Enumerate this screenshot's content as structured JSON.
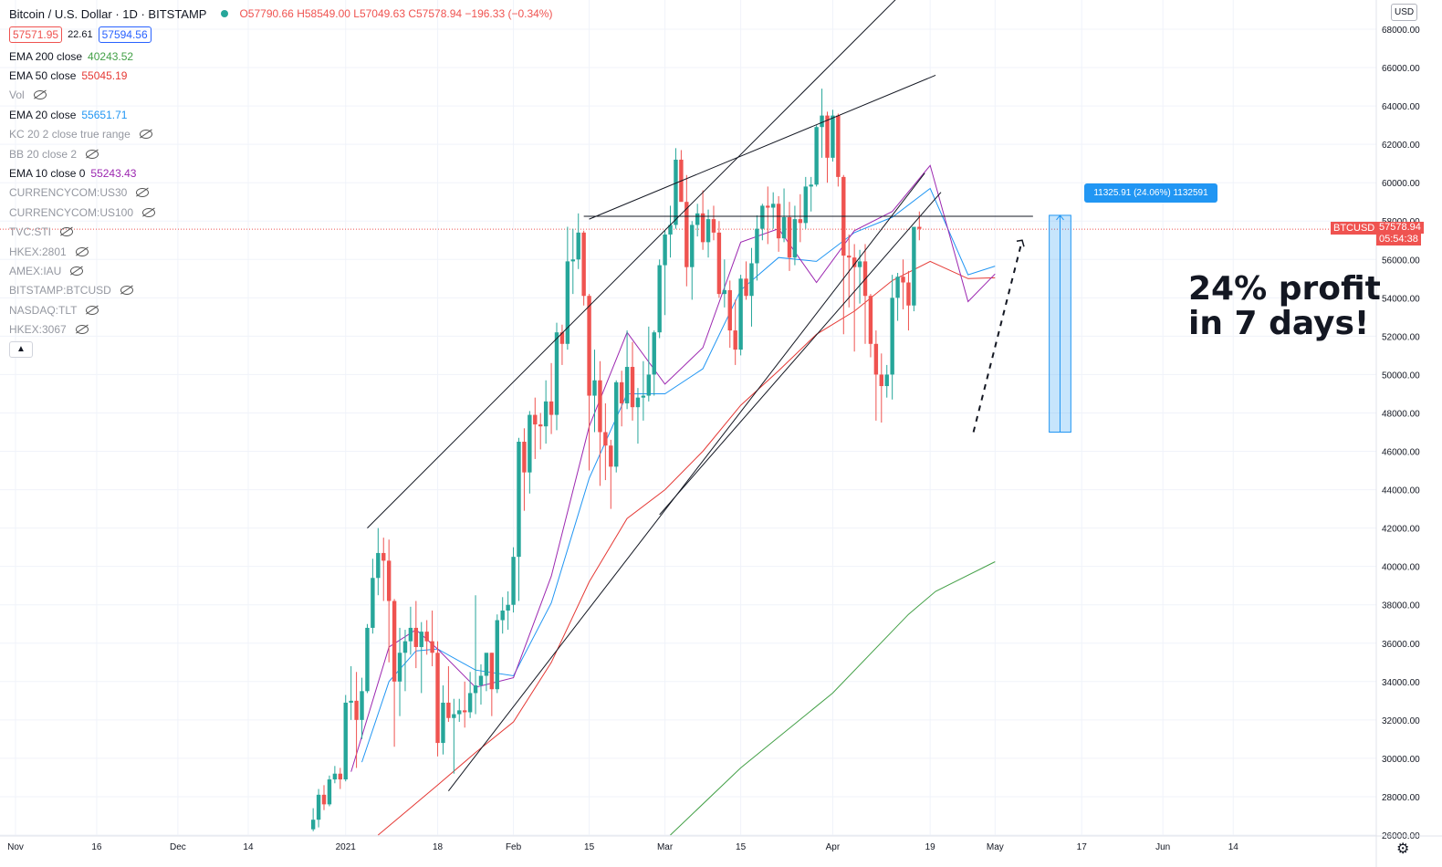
{
  "header": {
    "symbol_title": "Bitcoin / U.S. Dollar · 1D · BITSTAMP",
    "open": "O57790.66",
    "high": "H58549.00",
    "low": "L57049.63",
    "close": "C57578.94",
    "change": "−196.33 (−0.34%)",
    "bid": "57571.95",
    "spread": "22.61",
    "ask": "57594.56"
  },
  "indicators": [
    {
      "name": "EMA 200 close",
      "value": "40243.52",
      "color": "#43a047",
      "hidden": false
    },
    {
      "name": "EMA 50 close",
      "value": "55045.19",
      "color": "#e53935",
      "hidden": false
    },
    {
      "name": "Vol",
      "value": "",
      "color": "",
      "hidden": true
    },
    {
      "name": "EMA 20 close",
      "value": "55651.71",
      "color": "#2196f3",
      "hidden": false
    },
    {
      "name": "KC 20 2 close true range",
      "value": "",
      "color": "",
      "hidden": true
    },
    {
      "name": "BB 20 close 2",
      "value": "",
      "color": "",
      "hidden": true
    },
    {
      "name": "EMA 10 close 0",
      "value": "55243.43",
      "color": "#9c27b0",
      "hidden": false
    },
    {
      "name": "CURRENCYCOM:US30",
      "value": "",
      "color": "",
      "hidden": true
    },
    {
      "name": "CURRENCYCOM:US100",
      "value": "",
      "color": "",
      "hidden": true
    },
    {
      "name": "TVC:STI",
      "value": "",
      "color": "",
      "hidden": true
    },
    {
      "name": "HKEX:2801",
      "value": "",
      "color": "",
      "hidden": true
    },
    {
      "name": "AMEX:IAU",
      "value": "",
      "color": "",
      "hidden": true
    },
    {
      "name": "BITSTAMP:BTCUSD",
      "value": "",
      "color": "",
      "hidden": true
    },
    {
      "name": "NASDAQ:TLT",
      "value": "",
      "color": "",
      "hidden": true
    },
    {
      "name": "HKEX:3067",
      "value": "",
      "color": "",
      "hidden": true
    }
  ],
  "currency_label": "USD",
  "symbol_tag": "BTCUSD",
  "last_price_tag": "57578.94",
  "countdown_tag": "05:54:38",
  "measure_label": "11325.91 (24.06%) 1132591",
  "annotation_line1": "24% profit",
  "annotation_line2": "in 7 days!",
  "icons": {
    "collapse": "chevron-up-icon",
    "settings": "gear-icon",
    "visibility": "eye-off-icon"
  },
  "colors": {
    "up": "#26a69a",
    "down": "#ef5350",
    "ema200": "#43a047",
    "ema50": "#e53935",
    "ema20": "#2196f3",
    "ema10": "#9c27b0",
    "measure": "#2196f3"
  },
  "chart_data": {
    "type": "candlestick",
    "title": "Bitcoin / U.S. Dollar · 1D · BITSTAMP",
    "ylim": [
      25500,
      68500
    ],
    "y_ticks": [
      "26000.00",
      "28000.00",
      "30000.00",
      "32000.00",
      "34000.00",
      "36000.00",
      "38000.00",
      "40000.00",
      "42000.00",
      "44000.00",
      "46000.00",
      "48000.00",
      "50000.00",
      "52000.00",
      "54000.00",
      "56000.00",
      "58000.00",
      "60000.00",
      "62000.00",
      "64000.00",
      "66000.00",
      "68000.00"
    ],
    "x_ticks": [
      {
        "label": "Nov",
        "date": "2020-11-01"
      },
      {
        "label": "16",
        "date": "2020-11-16"
      },
      {
        "label": "Dec",
        "date": "2020-12-01"
      },
      {
        "label": "14",
        "date": "2020-12-14"
      },
      {
        "label": "2021",
        "date": "2021-01-01"
      },
      {
        "label": "18",
        "date": "2021-01-18"
      },
      {
        "label": "Feb",
        "date": "2021-02-01"
      },
      {
        "label": "15",
        "date": "2021-02-15"
      },
      {
        "label": "Mar",
        "date": "2021-03-01"
      },
      {
        "label": "15",
        "date": "2021-03-15"
      },
      {
        "label": "Apr",
        "date": "2021-04-01"
      },
      {
        "label": "19",
        "date": "2021-04-19"
      },
      {
        "label": "May",
        "date": "2021-05-01"
      },
      {
        "label": "17",
        "date": "2021-05-17"
      },
      {
        "label": "Jun",
        "date": "2021-06-01"
      },
      {
        "label": "14",
        "date": "2021-06-14"
      }
    ],
    "first_candle_date": "2020-12-26",
    "candles": [
      [
        26300,
        27400,
        26200,
        26800
      ],
      [
        26800,
        28400,
        26400,
        28100
      ],
      [
        28100,
        28600,
        27300,
        27600
      ],
      [
        27600,
        29100,
        27500,
        28900
      ],
      [
        28900,
        29600,
        28700,
        29200
      ],
      [
        29200,
        29500,
        28400,
        28900
      ],
      [
        28900,
        33300,
        28800,
        32900
      ],
      [
        32900,
        34800,
        32000,
        33000
      ],
      [
        33000,
        34500,
        29500,
        32000
      ],
      [
        32000,
        34200,
        31000,
        33500
      ],
      [
        33500,
        37000,
        33400,
        36800
      ],
      [
        36800,
        40400,
        36500,
        39400
      ],
      [
        39400,
        42000,
        38500,
        40700
      ],
      [
        40700,
        41500,
        38200,
        40300
      ],
      [
        40300,
        41400,
        35000,
        38200
      ],
      [
        38200,
        38300,
        30600,
        34000
      ],
      [
        34000,
        36800,
        32200,
        35500
      ],
      [
        35500,
        36700,
        33500,
        36100
      ],
      [
        36100,
        37900,
        35400,
        36800
      ],
      [
        36800,
        38200,
        34700,
        35800
      ],
      [
        35800,
        37100,
        33400,
        36600
      ],
      [
        36600,
        37200,
        35400,
        36100
      ],
      [
        36100,
        37700,
        34800,
        35500
      ],
      [
        35500,
        36100,
        30100,
        30800
      ],
      [
        30800,
        33800,
        30200,
        32900
      ],
      [
        32900,
        34800,
        31900,
        32100
      ],
      [
        32100,
        33100,
        29200,
        32300
      ],
      [
        32300,
        33100,
        31900,
        32500
      ],
      [
        32500,
        34000,
        31600,
        32400
      ],
      [
        32400,
        34500,
        32100,
        33400
      ],
      [
        33400,
        38500,
        32300,
        33800
      ],
      [
        33800,
        34900,
        32800,
        34300
      ],
      [
        34300,
        35400,
        33500,
        35500
      ],
      [
        35500,
        35500,
        32200,
        33600
      ],
      [
        33600,
        37500,
        33400,
        37200
      ],
      [
        37200,
        38400,
        36500,
        37700
      ],
      [
        37700,
        38700,
        36700,
        38000
      ],
      [
        38000,
        41000,
        37600,
        40500
      ],
      [
        40500,
        46700,
        38200,
        46500
      ],
      [
        46500,
        47200,
        42900,
        44900
      ],
      [
        44900,
        48100,
        43800,
        47900
      ],
      [
        47900,
        48800,
        45600,
        47400
      ],
      [
        47400,
        48000,
        46100,
        47300
      ],
      [
        47300,
        49700,
        46400,
        48600
      ],
      [
        48600,
        50600,
        46900,
        47900
      ],
      [
        47900,
        52700,
        47100,
        52200
      ],
      [
        52200,
        52600,
        50500,
        51600
      ],
      [
        51600,
        57700,
        51300,
        55900
      ],
      [
        55900,
        57600,
        54200,
        56000
      ],
      [
        56000,
        58400,
        55500,
        57400
      ],
      [
        57400,
        57500,
        53600,
        54100
      ],
      [
        54100,
        54200,
        45000,
        48900
      ],
      [
        48900,
        51300,
        47000,
        49700
      ],
      [
        49700,
        50700,
        44200,
        47000
      ],
      [
        47000,
        48500,
        44500,
        46300
      ],
      [
        46300,
        46600,
        43000,
        45200
      ],
      [
        45200,
        49700,
        44900,
        49600
      ],
      [
        49600,
        50200,
        47300,
        48500
      ],
      [
        48500,
        52300,
        48200,
        50400
      ],
      [
        50400,
        51700,
        47600,
        48300
      ],
      [
        48300,
        49300,
        46400,
        48800
      ],
      [
        48800,
        50700,
        47600,
        48900
      ],
      [
        48900,
        52500,
        48600,
        50000
      ],
      [
        50000,
        52300,
        48900,
        52200
      ],
      [
        52200,
        56000,
        51900,
        55700
      ],
      [
        55700,
        57500,
        53100,
        57300
      ],
      [
        57300,
        58800,
        56100,
        57800
      ],
      [
        57800,
        61800,
        57600,
        61200
      ],
      [
        61200,
        61700,
        59400,
        59000
      ],
      [
        59000,
        60400,
        54600,
        55600
      ],
      [
        55600,
        58000,
        53900,
        57800
      ],
      [
        57800,
        58900,
        57200,
        58400
      ],
      [
        58400,
        59600,
        56500,
        56900
      ],
      [
        56900,
        58600,
        56100,
        58100
      ],
      [
        58100,
        58800,
        57000,
        57400
      ],
      [
        57400,
        58000,
        54000,
        54200
      ],
      [
        54200,
        56000,
        53500,
        54400
      ],
      [
        54400,
        54900,
        51400,
        52300
      ],
      [
        52300,
        53900,
        50500,
        51300
      ],
      [
        51300,
        55200,
        51000,
        55000
      ],
      [
        55000,
        55900,
        53900,
        54100
      ],
      [
        54100,
        56600,
        52500,
        55800
      ],
      [
        55800,
        58300,
        54900,
        57600
      ],
      [
        57600,
        58900,
        57000,
        58800
      ],
      [
        58800,
        59800,
        56800,
        58700
      ],
      [
        58700,
        59500,
        57600,
        58900
      ],
      [
        58900,
        59300,
        56400,
        57100
      ],
      [
        57100,
        59700,
        56900,
        58200
      ],
      [
        58200,
        59000,
        55400,
        56100
      ],
      [
        56100,
        58800,
        55700,
        58100
      ],
      [
        58100,
        59400,
        56900,
        57900
      ],
      [
        57900,
        60300,
        57600,
        59800
      ],
      [
        59800,
        60300,
        58500,
        59900
      ],
      [
        59900,
        63000,
        59800,
        62900
      ],
      [
        62900,
        64900,
        61300,
        63500
      ],
      [
        63500,
        63700,
        60000,
        61300
      ],
      [
        61300,
        63800,
        61100,
        63500
      ],
      [
        63500,
        63600,
        59800,
        60300
      ],
      [
        60300,
        60400,
        52100,
        56200
      ],
      [
        56200,
        57300,
        53500,
        56100
      ],
      [
        56100,
        56800,
        51200,
        55600
      ],
      [
        55600,
        56500,
        53700,
        55900
      ],
      [
        55900,
        56800,
        51600,
        54100
      ],
      [
        54100,
        54200,
        50900,
        51600
      ],
      [
        51600,
        52300,
        47600,
        50000
      ],
      [
        50000,
        51100,
        47500,
        49400
      ],
      [
        49400,
        50500,
        48800,
        50000
      ],
      [
        50000,
        55200,
        48700,
        54000
      ],
      [
        54000,
        55300,
        52800,
        55100
      ],
      [
        55100,
        56000,
        53400,
        54800
      ],
      [
        54800,
        55400,
        52300,
        53600
      ],
      [
        53600,
        57600,
        53300,
        57700
      ],
      [
        57700,
        58500,
        57000,
        57600
      ]
    ],
    "series": [
      {
        "name": "EMA 200 close",
        "color": "#43a047",
        "points": [
          [
            "2021-03-02",
            26000
          ],
          [
            "2021-03-15",
            29500
          ],
          [
            "2021-04-01",
            33400
          ],
          [
            "2021-04-15",
            37500
          ],
          [
            "2021-04-20",
            38700
          ],
          [
            "2021-05-01",
            40243.52
          ]
        ]
      },
      {
        "name": "EMA 50 close",
        "color": "#e53935",
        "points": [
          [
            "2021-01-07",
            26000
          ],
          [
            "2021-01-18",
            28600
          ],
          [
            "2021-01-25",
            30300
          ],
          [
            "2021-02-01",
            31900
          ],
          [
            "2021-02-08",
            35000
          ],
          [
            "2021-02-15",
            39200
          ],
          [
            "2021-02-22",
            42500
          ],
          [
            "2021-03-01",
            44000
          ],
          [
            "2021-03-08",
            46000
          ],
          [
            "2021-03-15",
            48400
          ],
          [
            "2021-03-22",
            50200
          ],
          [
            "2021-03-29",
            52100
          ],
          [
            "2021-04-05",
            53300
          ],
          [
            "2021-04-12",
            54900
          ],
          [
            "2021-04-19",
            55900
          ],
          [
            "2021-04-26",
            55000
          ],
          [
            "2021-05-01",
            55045.19
          ]
        ]
      },
      {
        "name": "EMA 20 close",
        "color": "#2196f3",
        "points": [
          [
            "2021-01-04",
            29800
          ],
          [
            "2021-01-09",
            34000
          ],
          [
            "2021-01-14",
            35600
          ],
          [
            "2021-01-18",
            35700
          ],
          [
            "2021-01-25",
            34600
          ],
          [
            "2021-02-01",
            34300
          ],
          [
            "2021-02-08",
            38100
          ],
          [
            "2021-02-15",
            44600
          ],
          [
            "2021-02-22",
            49000
          ],
          [
            "2021-03-01",
            49000
          ],
          [
            "2021-03-08",
            50300
          ],
          [
            "2021-03-15",
            54400
          ],
          [
            "2021-03-22",
            56100
          ],
          [
            "2021-03-29",
            55900
          ],
          [
            "2021-04-05",
            57400
          ],
          [
            "2021-04-12",
            58200
          ],
          [
            "2021-04-19",
            59700
          ],
          [
            "2021-04-26",
            55200
          ],
          [
            "2021-05-01",
            55651.71
          ]
        ]
      },
      {
        "name": "EMA 10 close 0",
        "color": "#9c27b0",
        "points": [
          [
            "2021-01-02",
            29300
          ],
          [
            "2021-01-09",
            35800
          ],
          [
            "2021-01-14",
            36700
          ],
          [
            "2021-01-18",
            35700
          ],
          [
            "2021-01-25",
            33700
          ],
          [
            "2021-02-01",
            34200
          ],
          [
            "2021-02-08",
            39500
          ],
          [
            "2021-02-15",
            47300
          ],
          [
            "2021-02-22",
            52200
          ],
          [
            "2021-03-01",
            49500
          ],
          [
            "2021-03-08",
            51400
          ],
          [
            "2021-03-15",
            56900
          ],
          [
            "2021-03-22",
            57600
          ],
          [
            "2021-03-29",
            54800
          ],
          [
            "2021-04-05",
            57500
          ],
          [
            "2021-04-12",
            58500
          ],
          [
            "2021-04-19",
            60900
          ],
          [
            "2021-04-26",
            53800
          ],
          [
            "2021-05-01",
            55243.43
          ]
        ]
      }
    ],
    "trendlines": [
      {
        "from": [
          "2021-01-05",
          42000
        ],
        "to": [
          "2021-04-16",
          70500
        ],
        "style": "solid"
      },
      {
        "from": [
          "2021-02-15",
          58100
        ],
        "to": [
          "2021-04-20",
          65600
        ],
        "style": "solid"
      },
      {
        "from": [
          "2021-02-14",
          58250
        ],
        "to": [
          "2021-05-08",
          58250
        ],
        "style": "solid"
      },
      {
        "from": [
          "2021-01-20",
          28300
        ],
        "to": [
          "2021-04-18",
          60500
        ],
        "style": "solid"
      },
      {
        "from": [
          "2021-02-28",
          42700
        ],
        "to": [
          "2021-04-21",
          59500
        ],
        "style": "solid"
      },
      {
        "from": [
          "2021-04-27",
          47000
        ],
        "to": [
          "2021-05-06",
          57000
        ],
        "style": "dashed"
      }
    ],
    "current_price": 57578.94,
    "measure": {
      "from_date": "2021-05-11",
      "to_date": "2021-05-15",
      "low": 47000,
      "high": 58300
    }
  }
}
